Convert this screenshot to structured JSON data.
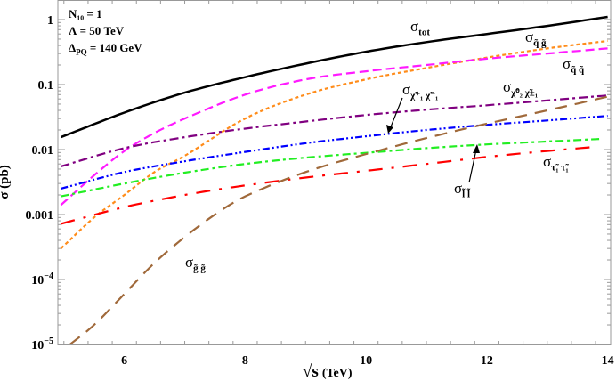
{
  "chart_data": {
    "type": "line",
    "xlabel_root": "√s",
    "xlabel_unit": "(TeV)",
    "ylabel": "σ (pb)",
    "xlim": [
      4.9,
      14.05
    ],
    "ylim": [
      1e-05,
      2
    ],
    "yscale": "log",
    "grid": false,
    "x_ticks": [
      "6",
      "8",
      "10",
      "12",
      "14"
    ],
    "y_ticks": [
      {
        "value": 1,
        "label": "1"
      },
      {
        "value": 0.1,
        "label": "0.1"
      },
      {
        "value": 0.01,
        "label": "0.01"
      },
      {
        "value": 0.001,
        "label": "0.001"
      },
      {
        "value": 0.0001,
        "label": "10",
        "exp": "−4"
      },
      {
        "value": 1e-05,
        "label": "10",
        "exp": "−5"
      }
    ],
    "params": [
      "N₁₀ = 1",
      "Λ = 50 TeV",
      "Δ_PQ = 140 GeV"
    ],
    "series": [
      {
        "name": "σ tot",
        "color": "#000000",
        "dash": "",
        "width": 2.5,
        "x": [
          4.95,
          6,
          7,
          8,
          9,
          10,
          11,
          12,
          13,
          14
        ],
        "y": [
          0.0155,
          0.037,
          0.075,
          0.13,
          0.21,
          0.32,
          0.45,
          0.6,
          0.8,
          1.1
        ]
      },
      {
        "name": "σ q̃ g̃",
        "color": "#ff8c1a",
        "dash": "4,3",
        "width": 2.2,
        "x": [
          4.95,
          5.5,
          6,
          6.5,
          7,
          8,
          9,
          10,
          11,
          12,
          13,
          14
        ],
        "y": [
          0.0003,
          0.0009,
          0.002,
          0.0045,
          0.008,
          0.03,
          0.07,
          0.12,
          0.18,
          0.26,
          0.36,
          0.47
        ]
      },
      {
        "name": "σ q̃ q̃",
        "color": "#ff1aff",
        "dash": "10,5",
        "width": 2.2,
        "x": [
          4.95,
          5.5,
          6,
          6.5,
          7,
          8,
          9,
          10,
          11,
          12,
          13,
          14
        ],
        "y": [
          0.0014,
          0.004,
          0.0095,
          0.018,
          0.03,
          0.07,
          0.12,
          0.16,
          0.2,
          0.25,
          0.3,
          0.36
        ]
      },
      {
        "name": "σ χ̃⁰₂ χ̃±₁",
        "color": "#800080",
        "dash": "10,4,3,4",
        "width": 2.2,
        "x": [
          4.95,
          6,
          7,
          8,
          9,
          10,
          11,
          12,
          13,
          14
        ],
        "y": [
          0.0055,
          0.0105,
          0.0155,
          0.021,
          0.027,
          0.034,
          0.041,
          0.048,
          0.057,
          0.068
        ]
      },
      {
        "name": "σ χ̃⁺₁ χ̃⁻₁",
        "color": "#0000ff",
        "dash": "8,3,2,3,2,3",
        "width": 2.2,
        "x": [
          4.95,
          6,
          7,
          8,
          9,
          10,
          11,
          12,
          13,
          14
        ],
        "y": [
          0.0025,
          0.0045,
          0.0066,
          0.0092,
          0.0125,
          0.016,
          0.02,
          0.024,
          0.028,
          0.033
        ]
      },
      {
        "name": "σ l̃ l̃",
        "color": "#22ee22",
        "dash": "9,4,3,4",
        "width": 2.2,
        "x": [
          4.95,
          6,
          7,
          8,
          9,
          10,
          11,
          12,
          13,
          13.9
        ],
        "y": [
          0.0019,
          0.003,
          0.0044,
          0.006,
          0.0075,
          0.0089,
          0.0105,
          0.012,
          0.0133,
          0.0146
        ]
      },
      {
        "name": "σ τ̃₁ τ̃₁",
        "color": "#ff0000",
        "dash": "16,10,3,10",
        "width": 2.2,
        "x": [
          4.95,
          6,
          7,
          8,
          9,
          10,
          11,
          12,
          13,
          13.8
        ],
        "y": [
          0.00072,
          0.0013,
          0.002,
          0.0028,
          0.0037,
          0.0047,
          0.006,
          0.0077,
          0.0095,
          0.011
        ]
      },
      {
        "name": "σ g̃ g̃",
        "color": "#a0693a",
        "dash": "14,9",
        "width": 2.2,
        "x": [
          5.1,
          5.5,
          6,
          6.5,
          7,
          7.5,
          8,
          9,
          10,
          11,
          12,
          13,
          14
        ],
        "y": [
          1e-05,
          2e-05,
          6e-05,
          0.00018,
          0.00045,
          0.001,
          0.0019,
          0.0045,
          0.0085,
          0.015,
          0.025,
          0.04,
          0.065
        ]
      }
    ],
    "annotations": {
      "tot": {
        "sym": "σ",
        "sub": "tot"
      },
      "qg": {
        "sym": "σ",
        "sub": "q̃ g̃"
      },
      "qq": {
        "sym": "σ",
        "sub": "q̃ q̃"
      },
      "n2c1": {
        "sym": "σ",
        "sub": "χ̃⁰₂ χ̃±₁"
      },
      "c1c1": {
        "sym": "σ",
        "sub": "χ̃⁺₁ χ̃⁻₁"
      },
      "ll": {
        "sym": "σ",
        "sub": "l̃ l̃"
      },
      "tautau": {
        "sym": "σ",
        "sub": "τ̃₁ τ̃₁"
      },
      "gg": {
        "sym": "σ",
        "sub": "g̃ g̃"
      }
    }
  }
}
